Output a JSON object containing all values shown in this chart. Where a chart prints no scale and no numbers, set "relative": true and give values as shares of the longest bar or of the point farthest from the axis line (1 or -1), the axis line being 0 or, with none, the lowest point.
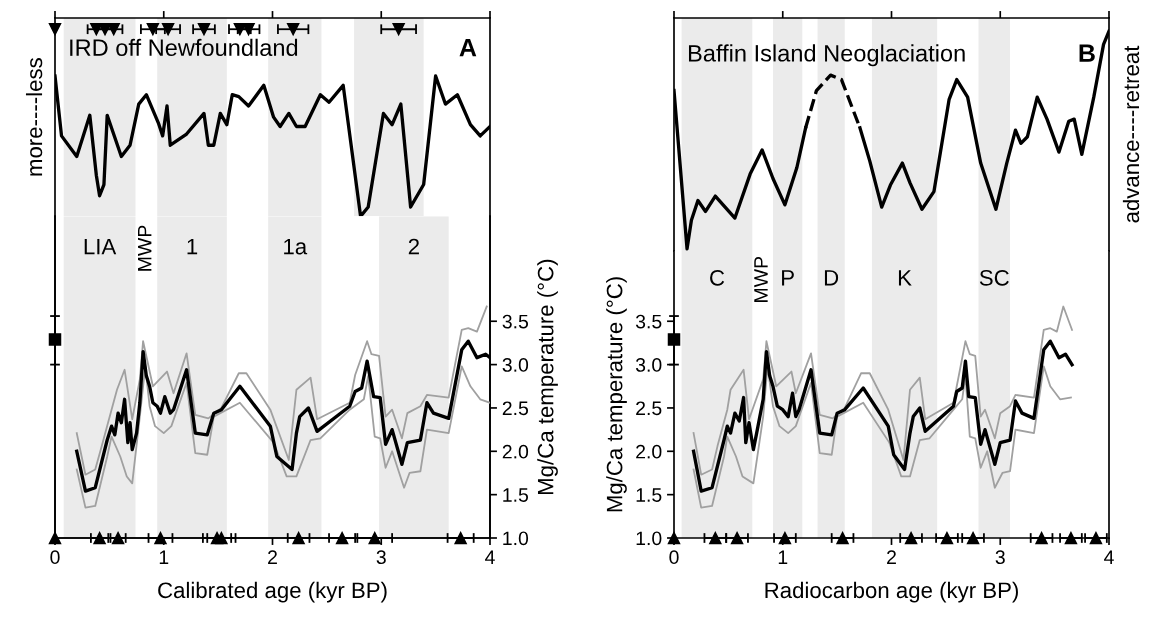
{
  "chart_data": [
    {
      "type": "line",
      "relative": true,
      "title": "IRD off Newfoundland",
      "subtitle": "A",
      "ylabel": "more----less",
      "xlim": [
        0,
        4
      ],
      "xticks": [
        0,
        1,
        2,
        3,
        4
      ],
      "tick_labels": false,
      "bands": [
        {
          "axis": "x",
          "from": 0.08,
          "to": 0.74,
          "color": "#ebebeb"
        },
        {
          "axis": "x",
          "from": 0.94,
          "to": 1.58,
          "color": "#ebebeb"
        },
        {
          "axis": "x",
          "from": 1.96,
          "to": 2.45,
          "color": "#ebebeb"
        },
        {
          "axis": "x",
          "from": 2.75,
          "to": 3.39,
          "color": "#ebebeb"
        }
      ],
      "series": [
        {
          "color": "#000000",
          "x": [
            0,
            0.06,
            0.2,
            0.32,
            0.38,
            0.41,
            0.45,
            0.48,
            0.61,
            0.69,
            0.77,
            0.84,
            0.95,
            0.99,
            1.03,
            1.06,
            1.21,
            1.37,
            1.41,
            1.46,
            1.52,
            1.58,
            1.63,
            1.69,
            1.78,
            1.92,
            2.01,
            2.07,
            2.15,
            2.22,
            2.3,
            2.44,
            2.52,
            2.65,
            2.81,
            2.88,
            3.02,
            3.1,
            3.18,
            3.27,
            3.39,
            3.5,
            3.59,
            3.7,
            3.82,
            3.91,
            4.0
          ],
          "values": [
            0.75,
            0.43,
            0.32,
            0.54,
            0.22,
            0.11,
            0.17,
            0.54,
            0.32,
            0.38,
            0.6,
            0.65,
            0.5,
            0.43,
            0.59,
            0.38,
            0.44,
            0.55,
            0.38,
            0.38,
            0.55,
            0.49,
            0.65,
            0.64,
            0.59,
            0.7,
            0.53,
            0.48,
            0.55,
            0.48,
            0.48,
            0.65,
            0.61,
            0.7,
            0.0,
            0.05,
            0.55,
            0.49,
            0.6,
            0.05,
            0.17,
            0.75,
            0.6,
            0.65,
            0.49,
            0.43,
            0.48
          ]
        },
        {
          "type": "scatter",
          "marker": "triangle",
          "color": "#000000",
          "x": [
            0,
            0.38,
            0.46,
            0.54,
            0.9,
            1.04,
            1.37,
            1.7,
            1.78,
            2.19,
            3.16
          ],
          "values": [
            1,
            1,
            1,
            1,
            1,
            1,
            1,
            1,
            1,
            1,
            1
          ],
          "xerrors": [
            null,
            0.08,
            0.08,
            0.08,
            0.11,
            0.11,
            0.1,
            0.1,
            0.1,
            0.14,
            0.16
          ]
        }
      ]
    },
    {
      "type": "line",
      "xlabel": "Calibrated age (kyr BP)",
      "y2label": "Mg/Ca temperature (°C)",
      "xlim": [
        0,
        4
      ],
      "xticks": [
        0,
        1,
        2,
        3,
        4
      ],
      "y2lim": [
        1.0,
        4.71
      ],
      "y2ticks": [
        {
          "value": 1.0,
          "label": "1.0"
        },
        {
          "value": 1.5,
          "label": "1.5"
        },
        {
          "value": 2.0,
          "label": "2.0"
        },
        {
          "value": 2.5,
          "label": "2.5"
        },
        {
          "value": 3.0,
          "label": "3.0"
        },
        {
          "value": 3.5,
          "label": "3.5"
        }
      ],
      "annotations": [
        "MWP"
      ],
      "bands": [
        {
          "axis": "x",
          "from": 0.08,
          "to": 0.74,
          "label": "LIA",
          "color": "#ebebeb"
        },
        {
          "axis": "x",
          "from": 0.94,
          "to": 1.58,
          "label": "1",
          "color": "#ebebeb"
        },
        {
          "axis": "x",
          "from": 1.96,
          "to": 2.45,
          "label": "1a",
          "color": "#ebebeb"
        },
        {
          "axis": "x",
          "from": 2.98,
          "to": 3.62,
          "label": "2",
          "color": "#ebebeb"
        }
      ],
      "series": [
        {
          "axis": "y2",
          "color": "#a0a0a0",
          "x": [
            0.2,
            0.28,
            0.37,
            0.43,
            0.52,
            0.57,
            0.64,
            0.71,
            0.78,
            0.81,
            0.9,
            1.03,
            1.09,
            1.21,
            1.29,
            1.41,
            1.53,
            1.69,
            1.76,
            1.98,
            2.15,
            2.22,
            2.35,
            2.41,
            2.71,
            2.76,
            2.87,
            2.91,
            2.98,
            3.04,
            3.1,
            3.19,
            3.24,
            3.36,
            3.42,
            3.62,
            3.74,
            3.8,
            3.88,
            3.97
          ],
          "values": [
            2.21,
            1.73,
            1.79,
            2.06,
            2.48,
            2.71,
            2.94,
            2.37,
            2.83,
            3.27,
            2.75,
            2.92,
            2.67,
            3.13,
            2.42,
            2.38,
            2.5,
            2.9,
            2.9,
            2.48,
            1.9,
            2.71,
            2.85,
            2.37,
            2.56,
            2.88,
            3.27,
            3.12,
            3.1,
            2.4,
            2.48,
            2.15,
            2.44,
            2.52,
            2.65,
            2.62,
            3.4,
            3.42,
            3.38,
            3.67
          ]
        },
        {
          "axis": "y2",
          "color": "#a0a0a0",
          "x": [
            0.2,
            0.28,
            0.37,
            0.48,
            0.52,
            0.6,
            0.66,
            0.71,
            0.78,
            0.83,
            0.87,
            0.92,
            1.0,
            1.07,
            1.21,
            1.29,
            1.4,
            1.46,
            1.7,
            2.01,
            2.13,
            2.22,
            2.35,
            2.44,
            2.71,
            2.84,
            2.88,
            2.94,
            2.99,
            3.04,
            3.1,
            3.21,
            3.26,
            3.36,
            3.42,
            3.62,
            3.74,
            3.82,
            3.91,
            4.0
          ],
          "values": [
            1.79,
            1.35,
            1.37,
            1.94,
            2.17,
            1.94,
            1.71,
            1.63,
            2.4,
            2.98,
            2.52,
            2.29,
            2.21,
            2.29,
            2.79,
            1.98,
            1.96,
            2.4,
            2.56,
            2.1,
            1.71,
            1.71,
            2.13,
            2.15,
            2.48,
            2.6,
            2.87,
            2.17,
            2.15,
            1.81,
            2.0,
            1.58,
            1.75,
            1.77,
            2.25,
            2.21,
            2.98,
            2.75,
            2.6,
            2.56
          ]
        },
        {
          "axis": "y2",
          "color": "#000000",
          "x": [
            0.2,
            0.28,
            0.37,
            0.48,
            0.52,
            0.55,
            0.58,
            0.61,
            0.64,
            0.67,
            0.69,
            0.71,
            0.75,
            0.78,
            0.81,
            0.84,
            0.87,
            0.9,
            0.94,
            0.97,
            1.01,
            1.06,
            1.09,
            1.21,
            1.29,
            1.4,
            1.46,
            1.53,
            1.7,
            1.98,
            2.04,
            2.18,
            2.22,
            2.25,
            2.33,
            2.41,
            2.71,
            2.76,
            2.82,
            2.87,
            2.93,
            2.99,
            3.04,
            3.1,
            3.19,
            3.24,
            3.36,
            3.42,
            3.48,
            3.62,
            3.74,
            3.8,
            3.88,
            3.96,
            4.0
          ],
          "values": [
            2.0,
            1.54,
            1.58,
            2.13,
            2.29,
            2.19,
            2.44,
            2.33,
            2.6,
            2.1,
            2.33,
            2.02,
            2.21,
            2.56,
            3.15,
            2.87,
            2.75,
            2.56,
            2.52,
            2.44,
            2.63,
            2.44,
            2.48,
            2.94,
            2.21,
            2.19,
            2.44,
            2.48,
            2.75,
            2.29,
            1.94,
            1.79,
            2.21,
            2.4,
            2.5,
            2.23,
            2.52,
            2.69,
            2.73,
            3.04,
            2.63,
            2.62,
            2.08,
            2.25,
            1.85,
            2.1,
            2.13,
            2.56,
            2.44,
            2.38,
            3.17,
            3.27,
            3.08,
            3.12,
            3.08
          ]
        },
        {
          "type": "scatter",
          "axis": "y2",
          "marker": "square",
          "color": "#000000",
          "x": [
            0
          ],
          "values": [
            3.29
          ],
          "errors": [
            [
              3.0,
              3.56
            ]
          ]
        },
        {
          "type": "scatter",
          "axis": "y2",
          "marker": "triangle",
          "color": "#000000",
          "x": [
            0,
            0.41,
            0.58,
            0.97,
            1.49,
            1.53,
            2.24,
            2.64,
            2.94,
            3.73
          ],
          "values": [
            1.0,
            1.0,
            1.0,
            1.0,
            1.0,
            1.0,
            1.0,
            1.0,
            1.0,
            1.0
          ],
          "xerrors": [
            null,
            0.08,
            0.07,
            0.11,
            0.13,
            0.13,
            0.1,
            0.12,
            0.16,
            0.12
          ]
        }
      ]
    },
    {
      "type": "line",
      "relative": true,
      "title": "Baffin Island Neoglaciation",
      "subtitle": "B",
      "y2label": "advance----retreat",
      "xlim": [
        0,
        4
      ],
      "xticks": [
        0,
        1,
        2,
        3,
        4
      ],
      "tick_labels": false,
      "bands": [
        {
          "axis": "x",
          "from": 0.07,
          "to": 0.72,
          "color": "#ebebeb"
        },
        {
          "axis": "x",
          "from": 0.91,
          "to": 1.18,
          "color": "#ebebeb"
        },
        {
          "axis": "x",
          "from": 1.32,
          "to": 1.57,
          "color": "#ebebeb"
        },
        {
          "axis": "x",
          "from": 1.82,
          "to": 2.42,
          "color": "#ebebeb"
        },
        {
          "axis": "x",
          "from": 2.8,
          "to": 3.09,
          "color": "#ebebeb"
        }
      ],
      "series": [
        {
          "color": "#000000",
          "x": [
            0,
            0.04,
            0.12,
            0.16,
            0.22,
            0.29,
            0.38,
            0.56,
            0.7,
            0.81,
            0.91,
            1.02,
            1.13,
            1.21
          ],
          "values": [
            0.73,
            0.49,
            0.01,
            0.14,
            0.23,
            0.18,
            0.25,
            0.15,
            0.35,
            0.46,
            0.33,
            0.21,
            0.38,
            0.56
          ]
        },
        {
          "line_style": "dashed",
          "color": "#000000",
          "x": [
            1.21,
            1.31,
            1.44,
            1.54,
            1.71
          ],
          "values": [
            0.56,
            0.73,
            0.8,
            0.78,
            0.56
          ]
        },
        {
          "color": "#000000",
          "x": [
            1.71,
            1.8,
            1.91,
            1.99,
            2.1,
            2.17,
            2.28,
            2.39,
            2.53,
            2.6,
            2.7,
            2.82,
            2.96,
            3.06,
            3.14,
            3.19,
            3.25,
            3.34,
            3.43,
            3.54,
            3.63,
            3.68,
            3.75,
            3.86,
            3.95,
            4.0
          ],
          "values": [
            0.56,
            0.41,
            0.2,
            0.3,
            0.4,
            0.31,
            0.19,
            0.27,
            0.69,
            0.78,
            0.7,
            0.4,
            0.19,
            0.4,
            0.55,
            0.49,
            0.52,
            0.7,
            0.6,
            0.45,
            0.59,
            0.6,
            0.44,
            0.7,
            0.94,
            1.0
          ]
        }
      ]
    },
    {
      "type": "line",
      "xlabel": "Radiocarbon age (kyr BP)",
      "ylabel": "Mg/Ca temperature (°C)",
      "xlim": [
        0,
        4
      ],
      "xticks": [
        0,
        1,
        2,
        3,
        4
      ],
      "ylim": [
        1.0,
        4.31
      ],
      "yticks": [
        {
          "value": 1.0,
          "label": "1.0"
        },
        {
          "value": 1.5,
          "label": "1.5"
        },
        {
          "value": 2.0,
          "label": "2.0"
        },
        {
          "value": 2.5,
          "label": "2.5"
        },
        {
          "value": 3.0,
          "label": "3.0"
        },
        {
          "value": 3.5,
          "label": "3.5"
        }
      ],
      "annotations": [
        "MWP"
      ],
      "bands": [
        {
          "axis": "x",
          "from": 0.07,
          "to": 0.72,
          "label": "C",
          "color": "#ebebeb"
        },
        {
          "axis": "x",
          "from": 0.91,
          "to": 1.18,
          "label": "P",
          "color": "#ebebeb"
        },
        {
          "axis": "x",
          "from": 1.32,
          "to": 1.57,
          "label": "D",
          "color": "#ebebeb"
        },
        {
          "axis": "x",
          "from": 1.82,
          "to": 2.42,
          "label": "K",
          "color": "#ebebeb"
        },
        {
          "axis": "x",
          "from": 2.8,
          "to": 3.09,
          "label": "SC",
          "color": "#ebebeb"
        }
      ],
      "series": [
        {
          "color": "#a0a0a0",
          "x": [
            0.18,
            0.25,
            0.35,
            0.4,
            0.49,
            0.52,
            0.64,
            0.69,
            0.82,
            0.85,
            0.94,
            1.08,
            1.12,
            1.26,
            1.34,
            1.46,
            1.57,
            1.72,
            1.8,
            1.97,
            2.11,
            2.17,
            2.26,
            2.31,
            2.57,
            2.62,
            2.68,
            2.72,
            2.77,
            2.82,
            2.86,
            2.95,
            3.0,
            3.09,
            3.14,
            3.31,
            3.4,
            3.46,
            3.52,
            3.58,
            3.66
          ],
          "values": [
            2.21,
            1.73,
            1.79,
            2.06,
            2.48,
            2.71,
            2.94,
            2.37,
            2.83,
            3.27,
            2.75,
            2.92,
            2.67,
            3.13,
            2.42,
            2.38,
            2.5,
            2.9,
            2.9,
            2.48,
            1.9,
            2.71,
            2.85,
            2.37,
            2.56,
            2.88,
            3.27,
            3.12,
            3.1,
            2.4,
            2.48,
            2.15,
            2.44,
            2.52,
            2.65,
            2.62,
            3.4,
            3.42,
            3.38,
            3.67,
            3.4
          ]
        },
        {
          "color": "#a0a0a0",
          "x": [
            0.18,
            0.25,
            0.35,
            0.46,
            0.49,
            0.57,
            0.63,
            0.73,
            0.82,
            0.86,
            0.91,
            0.97,
            1.05,
            1.12,
            1.26,
            1.34,
            1.45,
            1.5,
            1.74,
            1.98,
            2.09,
            2.17,
            2.26,
            2.35,
            2.57,
            2.65,
            2.68,
            2.72,
            2.77,
            2.82,
            2.88,
            2.95,
            3.02,
            3.09,
            3.14,
            3.31,
            3.4,
            3.46,
            3.55,
            3.65
          ],
          "values": [
            1.79,
            1.35,
            1.37,
            1.94,
            2.17,
            1.94,
            1.71,
            1.63,
            2.4,
            2.98,
            2.52,
            2.29,
            2.21,
            2.29,
            2.79,
            1.98,
            1.96,
            2.4,
            2.56,
            2.1,
            1.71,
            1.71,
            2.13,
            2.15,
            2.48,
            2.6,
            2.87,
            2.17,
            2.15,
            1.81,
            2.0,
            1.58,
            1.75,
            1.77,
            2.25,
            2.21,
            2.98,
            2.75,
            2.6,
            2.62
          ]
        },
        {
          "color": "#000000",
          "x": [
            0.18,
            0.25,
            0.35,
            0.46,
            0.49,
            0.52,
            0.56,
            0.6,
            0.64,
            0.66,
            0.69,
            0.73,
            0.76,
            0.82,
            0.85,
            0.88,
            0.91,
            0.95,
            1.0,
            1.05,
            1.09,
            1.12,
            1.15,
            1.26,
            1.34,
            1.45,
            1.5,
            1.57,
            1.74,
            1.97,
            2.02,
            2.12,
            2.17,
            2.2,
            2.26,
            2.31,
            2.57,
            2.6,
            2.65,
            2.68,
            2.71,
            2.77,
            2.82,
            2.86,
            2.95,
            3.0,
            3.09,
            3.14,
            3.2,
            3.31,
            3.4,
            3.46,
            3.54,
            3.6,
            3.66
          ],
          "values": [
            2.0,
            1.54,
            1.58,
            2.13,
            2.29,
            2.21,
            2.44,
            2.35,
            2.62,
            2.1,
            2.33,
            2.02,
            2.21,
            2.6,
            3.15,
            2.87,
            2.75,
            2.52,
            2.48,
            2.4,
            2.67,
            2.4,
            2.48,
            2.94,
            2.21,
            2.19,
            2.44,
            2.48,
            2.73,
            2.29,
            1.96,
            1.79,
            2.21,
            2.4,
            2.5,
            2.23,
            2.52,
            2.69,
            2.73,
            3.04,
            2.63,
            2.62,
            2.08,
            2.25,
            1.85,
            2.1,
            2.13,
            2.58,
            2.44,
            2.38,
            3.17,
            3.27,
            3.08,
            3.12,
            3.0
          ]
        },
        {
          "type": "scatter",
          "marker": "square",
          "color": "#000000",
          "x": [
            0
          ],
          "values": [
            3.29
          ],
          "errors": [
            [
              3.0,
              3.56
            ]
          ]
        },
        {
          "type": "scatter",
          "marker": "triangle",
          "color": "#000000",
          "x": [
            0,
            0.38,
            0.58,
            1.02,
            1.55,
            2.18,
            2.51,
            2.75,
            3.38,
            3.65,
            3.88
          ],
          "values": [
            1.0,
            1.0,
            1.0,
            1.0,
            1.0,
            1.0,
            1.0,
            1.0,
            1.0,
            1.0,
            1.0
          ],
          "xerrors": [
            null,
            0.1,
            0.1,
            0.1,
            0.1,
            0.1,
            0.1,
            0.1,
            0.1,
            0.1,
            0.1
          ]
        }
      ]
    }
  ]
}
